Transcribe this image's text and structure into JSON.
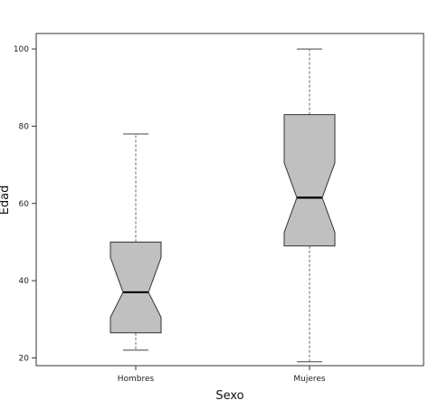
{
  "chart_data": {
    "type": "boxplot",
    "notched": true,
    "xlabel": "Sexo",
    "ylabel": "Edad",
    "ylim": [
      18,
      104
    ],
    "yticks": [
      20,
      40,
      60,
      80,
      100
    ],
    "categories": [
      "Hombres",
      "Mujeres"
    ],
    "boxes": [
      {
        "category": "Hombres",
        "min": 22,
        "q1": 26.5,
        "median": 37,
        "q3": 50,
        "max": 78,
        "notch_low": 30.5,
        "notch_high": 46
      },
      {
        "category": "Mujeres",
        "min": 19,
        "q1": 49,
        "median": 61.5,
        "q3": 83,
        "max": 100,
        "notch_low": 52.5,
        "notch_high": 70.5
      }
    ],
    "grid": false,
    "colors": {
      "box_fill": "#c0c0c0",
      "box_stroke": "#333333",
      "median": "#000000",
      "whisker": "#444444"
    }
  }
}
